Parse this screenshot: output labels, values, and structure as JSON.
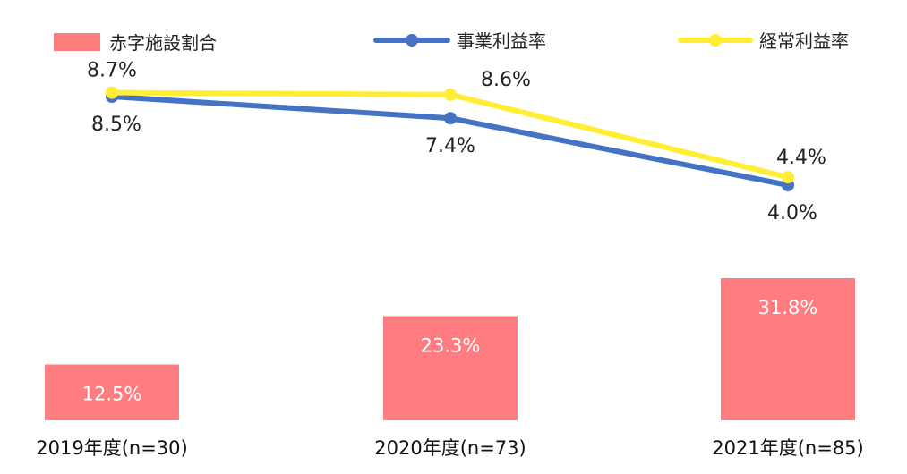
{
  "chart_data": {
    "type": "bar+line",
    "categories": [
      "2019年度(n=30)",
      "2020年度(n=73)",
      "2021年度(n=85)"
    ],
    "bars": {
      "name": "赤字施設割合",
      "values": [
        12.5,
        23.3,
        31.8
      ],
      "labels": [
        "12.5%",
        "23.3%",
        "31.8%"
      ],
      "color": "#ff7c80"
    },
    "lines": [
      {
        "name": "事業利益率",
        "values": [
          8.5,
          7.4,
          4.0
        ],
        "labels": [
          "8.5%",
          "7.4%",
          "4.0%"
        ],
        "color": "#4472c4"
      },
      {
        "name": "経常利益率",
        "values": [
          8.7,
          8.6,
          4.4
        ],
        "labels": [
          "8.7%",
          "8.6%",
          "4.4%"
        ],
        "color": "#ffee33"
      }
    ],
    "legend": {
      "position": "top"
    },
    "grid": false
  }
}
